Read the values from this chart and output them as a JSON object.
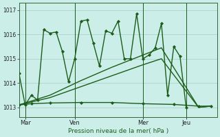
{
  "background_color": "#cceee8",
  "plot_bg_color": "#cceee8",
  "line_color": "#1a5c1a",
  "grid_color": "#aaccc8",
  "xlabel": "Pression niveau de la mer( hPa )",
  "ylim": [
    1012.6,
    1017.3
  ],
  "yticks": [
    1013,
    1014,
    1015,
    1016,
    1017
  ],
  "xtick_labels": [
    "Mar",
    "Ven",
    "Mer",
    "Jeu"
  ],
  "xlim": [
    0,
    32
  ],
  "xtick_positions": [
    1,
    9,
    20,
    27
  ],
  "vline_positions": [
    1,
    9,
    20,
    27
  ],
  "line1_x": [
    0,
    1,
    2,
    3,
    4,
    5,
    6,
    7,
    8,
    9,
    10,
    11,
    12,
    13,
    14,
    15,
    16,
    17,
    18,
    19,
    20,
    21,
    22,
    23,
    24,
    25,
    26,
    27,
    28,
    29,
    30,
    31
  ],
  "line1_y": [
    1014.4,
    1013.1,
    1013.5,
    1013.3,
    1016.2,
    1016.05,
    1016.1,
    1015.3,
    1014.05,
    1015.0,
    1016.55,
    1016.6,
    1015.65,
    1014.7,
    1016.15,
    1016.05,
    1016.55,
    1015.0,
    1015.0,
    1016.85,
    1015.0,
    1015.15,
    1015.45,
    1016.45,
    1013.5,
    1015.5,
    1015.1,
    1013.0,
    1013.05,
    1013.0,
    1013.0,
    1013.0
  ],
  "line2_x": [
    0,
    2,
    5,
    10,
    15,
    20,
    25,
    29,
    31
  ],
  "line2_y": [
    1013.1,
    1013.15,
    1013.18,
    1013.2,
    1013.2,
    1013.15,
    1013.12,
    1013.05,
    1013.05
  ],
  "line3_x": [
    0,
    5,
    10,
    15,
    20,
    23,
    29,
    31
  ],
  "line3_y": [
    1013.1,
    1013.4,
    1013.85,
    1014.3,
    1014.75,
    1015.0,
    1013.0,
    1013.05
  ],
  "line4_x": [
    0,
    5,
    10,
    15,
    20,
    23,
    29,
    31
  ],
  "line4_y": [
    1013.1,
    1013.5,
    1014.1,
    1014.65,
    1015.15,
    1015.45,
    1013.0,
    1013.05
  ]
}
